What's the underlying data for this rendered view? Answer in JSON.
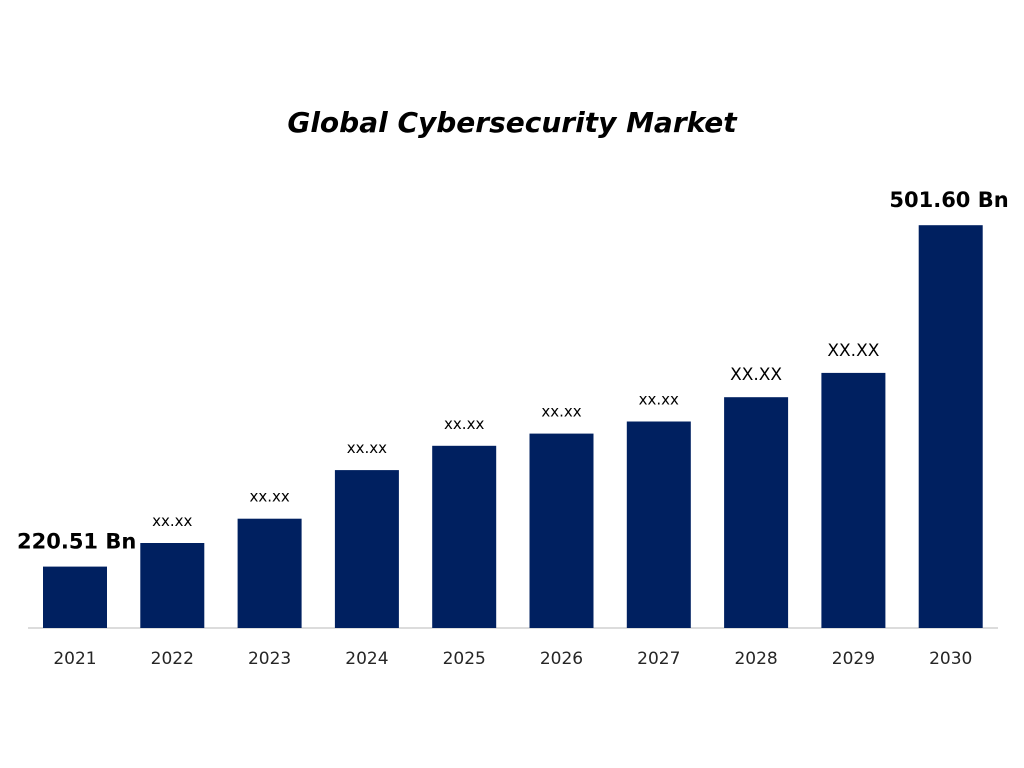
{
  "chart_data": {
    "type": "bar",
    "title": "Global Cybersecurity Market",
    "xlabel": "",
    "ylabel": "",
    "categories": [
      "2021",
      "2022",
      "2023",
      "2024",
      "2025",
      "2026",
      "2027",
      "2028",
      "2029",
      "2030"
    ],
    "values": [
      220.51,
      240,
      260,
      300,
      320,
      330,
      340,
      360,
      380,
      501.6
    ],
    "data_labels": [
      "220.51 Bn",
      "xx.xx",
      "xx.xx",
      "xx.xx",
      "xx.xx",
      "xx.xx",
      "xx.xx",
      "XX.XX",
      "XX.XX",
      "501.60 Bn"
    ],
    "ylim": [
      170,
      510
    ],
    "bar_color": "#002060",
    "grid": false,
    "legend": "none"
  }
}
